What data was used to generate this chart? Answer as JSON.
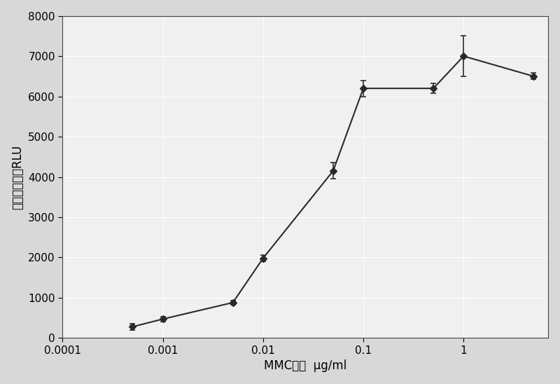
{
  "x": [
    0.0005,
    0.001,
    0.005,
    0.01,
    0.05,
    0.1,
    0.5,
    1.0,
    5.0
  ],
  "y": [
    280,
    470,
    880,
    1980,
    4150,
    6200,
    6200,
    7000,
    6500
  ],
  "yerr": [
    80,
    60,
    50,
    80,
    200,
    200,
    120,
    500,
    80
  ],
  "title": "",
  "xlabel": "MMC浓度  μg/ml",
  "ylabel": "相对发光强度RLU",
  "ylim": [
    0,
    8000
  ],
  "xlim": [
    0.0001,
    7
  ],
  "yticks": [
    0,
    1000,
    2000,
    3000,
    4000,
    5000,
    6000,
    7000,
    8000
  ],
  "xtick_vals": [
    0.0001,
    0.001,
    0.01,
    0.1,
    1
  ],
  "xtick_labels": [
    "0.0001",
    "0.001",
    "0.01",
    "0.1",
    "1"
  ],
  "line_color": "#2a2a2a",
  "marker": "D",
  "marker_size": 5,
  "marker_color": "#2a2a2a",
  "bg_color": "#d8d8d8",
  "plot_bg": "#f0f0f0",
  "grid_color": "#ffffff",
  "xlabel_fontsize": 12,
  "ylabel_fontsize": 12,
  "tick_fontsize": 11
}
